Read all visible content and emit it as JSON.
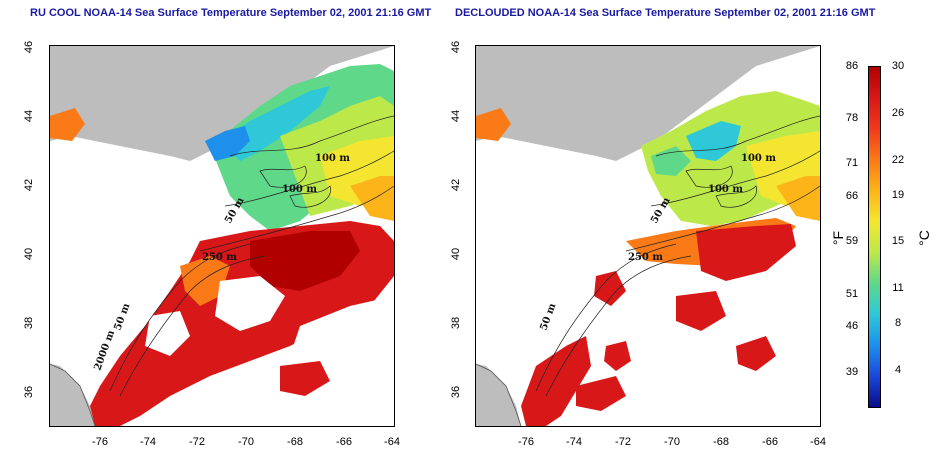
{
  "titles": {
    "left": "RU COOL NOAA-14 Sea Surface Temperature September 02, 2001 21:16 GMT",
    "right": "DECLOUDED NOAA-14 Sea Surface Temperature September 02, 2001 21:16 GMT"
  },
  "x_ticks": [
    "-76",
    "-74",
    "-72",
    "-70",
    "-68",
    "-66",
    "-64"
  ],
  "y_ticks": [
    "36",
    "38",
    "40",
    "42",
    "44",
    "46"
  ],
  "contour_labels": {
    "c100a": "100 m",
    "c100b": "100 m",
    "c50": "50 m",
    "c250": "250 m",
    "c50b": "50 m",
    "c2000": "2000 m"
  },
  "colorbar": {
    "unit_f": "°F",
    "unit_c": "°C",
    "fahrenheit_labels": [
      "86",
      "78",
      "71",
      "66",
      "59",
      "51",
      "46",
      "39"
    ],
    "celsius_labels": [
      "30",
      "26",
      "22",
      "19",
      "15",
      "11",
      "8",
      "4"
    ],
    "colors": [
      "#b00000",
      "#d81818",
      "#f03a1c",
      "#fa7a18",
      "#fcb418",
      "#f4e630",
      "#bde84a",
      "#5fd88a",
      "#2ec8d8",
      "#1e90ec",
      "#1a48d8",
      "#0a0a8a"
    ]
  },
  "colors": {
    "land": "#bdbdbd",
    "cloud": "#ffffff",
    "title": "#1a1aa0"
  }
}
